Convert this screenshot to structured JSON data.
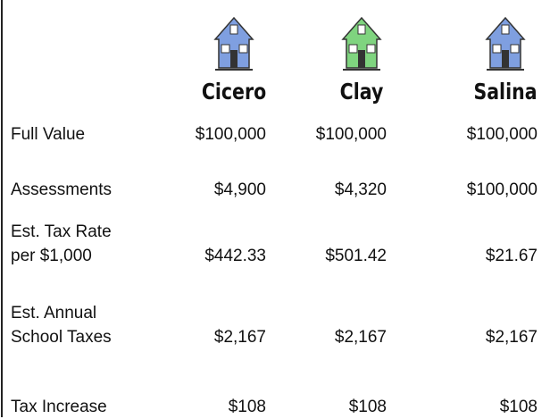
{
  "table": {
    "columns": [
      "Cicero",
      "Clay",
      "Salina"
    ],
    "rows": [
      {
        "label": [
          "Full Value"
        ],
        "cells": [
          "$100,000",
          "$100,000",
          "$100,000"
        ]
      },
      {
        "label": [
          "Assessments"
        ],
        "cells": [
          "$4,900",
          "$4,320",
          "$100,000"
        ]
      },
      {
        "label": [
          "Est. Tax Rate",
          "per $1,000"
        ],
        "cells": [
          "$442.33",
          "$501.42",
          "$21.67"
        ]
      },
      {
        "label": [
          "Est. Annual",
          "School Taxes"
        ],
        "cells": [
          "$2,167",
          "$2,167",
          "$2,167"
        ]
      },
      {
        "label": [
          "Tax Increase"
        ],
        "cells": [
          "$108",
          "$108",
          "$108"
        ]
      }
    ]
  }
}
